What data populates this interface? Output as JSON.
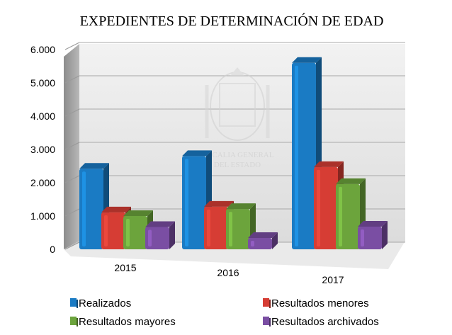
{
  "chart_data": {
    "type": "bar",
    "title": "EXPEDIENTES DE DETERMINACIÓN DE EDAD",
    "xlabel": "",
    "ylabel": "",
    "categories": [
      "2015",
      "2016",
      "2017"
    ],
    "ylim": [
      0,
      6000
    ],
    "yticks": [
      0,
      1000,
      2000,
      3000,
      4000,
      5000,
      6000
    ],
    "ytick_labels": [
      "0",
      "1.000",
      "2.000",
      "3.000",
      "4.000",
      "5.000",
      "6.000"
    ],
    "grid": true,
    "legend_position": "bottom",
    "series": [
      {
        "name": "Realizados",
        "values": [
          2420,
          2800,
          5600
        ],
        "color": "#1a7bc4"
      },
      {
        "name": "Resultados menores",
        "values": [
          1110,
          1280,
          2470
        ],
        "color": "#d63d34"
      },
      {
        "name": "Resultados mayores",
        "values": [
          1000,
          1210,
          1960
        ],
        "color": "#6ca43c"
      },
      {
        "name": "Resultados archivados",
        "values": [
          670,
          340,
          680
        ],
        "color": "#7a4ea3"
      }
    ]
  },
  "watermark": {
    "line1": "FISCALIA GENERAL",
    "line2": "DEL ESTADO"
  }
}
